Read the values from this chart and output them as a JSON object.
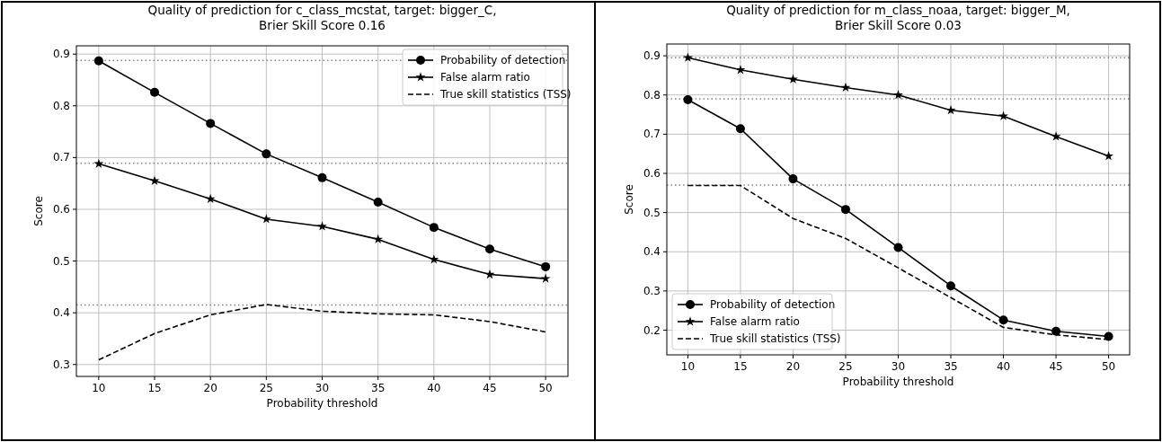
{
  "chart_data": [
    {
      "type": "line",
      "title": "Quality of prediction for c_class_mcstat, target: bigger_C,\nBrier Skill Score 0.16",
      "xlabel": "Probability threshold",
      "ylabel": "Score",
      "x": [
        10,
        15,
        20,
        25,
        30,
        35,
        40,
        45,
        50
      ],
      "xlim": [
        8,
        52
      ],
      "xticks": [
        10,
        15,
        20,
        25,
        30,
        35,
        40,
        45,
        50
      ],
      "ylim": [
        0.277,
        0.916
      ],
      "yticks": [
        {
          "value": 0.3,
          "label": "0.3"
        },
        {
          "value": 0.4,
          "label": "0.4"
        },
        {
          "value": 0.5,
          "label": "0.5"
        },
        {
          "value": 0.6,
          "label": "0.6"
        },
        {
          "value": 0.7,
          "label": "0.7"
        },
        {
          "value": 0.8,
          "label": "0.8"
        },
        {
          "value": 0.9,
          "label": "0.9"
        }
      ],
      "grid": true,
      "legend": "top right",
      "series": [
        {
          "name": "Probability of detection",
          "color": "#000000",
          "marker": "circle",
          "line_style": "solid",
          "values": [
            0.887,
            0.826,
            0.766,
            0.707,
            0.661,
            0.614,
            0.565,
            0.523,
            0.489
          ]
        },
        {
          "name": "False alarm ratio",
          "color": "#000000",
          "marker": "star",
          "line_style": "solid",
          "values": [
            0.688,
            0.655,
            0.62,
            0.581,
            0.567,
            0.542,
            0.503,
            0.474,
            0.466
          ]
        },
        {
          "name": "True skill statistics (TSS)",
          "color": "#000000",
          "marker": "none",
          "line_style": "dashed",
          "values": [
            0.309,
            0.36,
            0.396,
            0.416,
            0.403,
            0.398,
            0.396,
            0.383,
            0.363
          ]
        }
      ],
      "ref_lines": [
        {
          "axis": "y",
          "value": 0.888,
          "color": "#808080",
          "line_style": "dotted"
        },
        {
          "axis": "y",
          "value": 0.689,
          "color": "#808080",
          "line_style": "dotted"
        },
        {
          "axis": "y",
          "value": 0.415,
          "color": "#808080",
          "line_style": "dotted"
        }
      ]
    },
    {
      "type": "line",
      "title": "Quality of prediction for m_class_noaa, target: bigger_M,\nBrier Skill Score 0.03",
      "xlabel": "Probability threshold",
      "ylabel": "Score",
      "x": [
        10,
        15,
        20,
        25,
        30,
        35,
        40,
        45,
        50
      ],
      "xlim": [
        8,
        52
      ],
      "xticks": [
        10,
        15,
        20,
        25,
        30,
        35,
        40,
        45,
        50
      ],
      "ylim": [
        0.137,
        0.93
      ],
      "yticks": [
        {
          "value": 0.2,
          "label": "0.2"
        },
        {
          "value": 0.3,
          "label": "0.3"
        },
        {
          "value": 0.4,
          "label": "0.4"
        },
        {
          "value": 0.5,
          "label": "0.5"
        },
        {
          "value": 0.6,
          "label": "0.6"
        },
        {
          "value": 0.7,
          "label": "0.7"
        },
        {
          "value": 0.8,
          "label": "0.8"
        },
        {
          "value": 0.9,
          "label": "0.9"
        }
      ],
      "grid": true,
      "legend": "bottom left",
      "series": [
        {
          "name": "Probability of detection",
          "color": "#000000",
          "marker": "circle",
          "line_style": "solid",
          "values": [
            0.788,
            0.714,
            0.586,
            0.508,
            0.411,
            0.313,
            0.226,
            0.197,
            0.184
          ]
        },
        {
          "name": "False alarm ratio",
          "color": "#000000",
          "marker": "star",
          "line_style": "solid",
          "values": [
            0.895,
            0.864,
            0.84,
            0.819,
            0.8,
            0.761,
            0.746,
            0.694,
            0.644
          ]
        },
        {
          "name": "True skill statistics (TSS)",
          "color": "#000000",
          "marker": "none",
          "line_style": "dashed",
          "values": [
            0.569,
            0.569,
            0.485,
            0.434,
            0.359,
            0.283,
            0.207,
            0.188,
            0.176
          ]
        }
      ],
      "ref_lines": [
        {
          "axis": "y",
          "value": 0.895,
          "color": "#808080",
          "line_style": "dotted"
        },
        {
          "axis": "y",
          "value": 0.79,
          "color": "#808080",
          "line_style": "dotted"
        },
        {
          "axis": "y",
          "value": 0.57,
          "color": "#808080",
          "line_style": "dotted"
        }
      ]
    }
  ]
}
